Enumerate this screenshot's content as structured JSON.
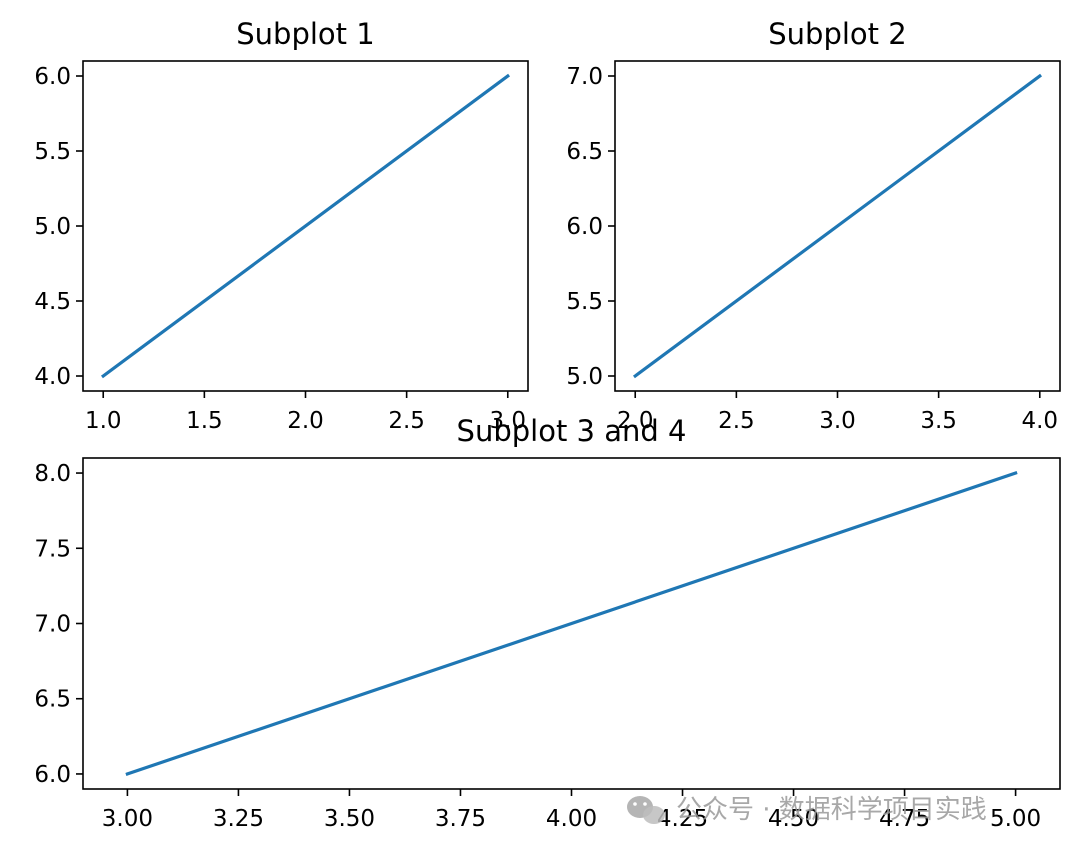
{
  "chart_data": [
    {
      "type": "line",
      "title": "Subplot 1",
      "x": [
        1,
        3
      ],
      "series": [
        {
          "values": [
            4,
            6
          ]
        }
      ],
      "xlim": [
        0.9,
        3.1
      ],
      "ylim": [
        3.9,
        6.1
      ],
      "xticks": [
        1.0,
        1.5,
        2.0,
        2.5,
        3.0
      ],
      "xtick_labels": [
        "1.0",
        "1.5",
        "2.0",
        "2.5",
        "3.0"
      ],
      "yticks": [
        4.0,
        4.5,
        5.0,
        5.5,
        6.0
      ],
      "ytick_labels": [
        "4.0",
        "4.5",
        "5.0",
        "5.5",
        "6.0"
      ],
      "grid": false
    },
    {
      "type": "line",
      "title": "Subplot 2",
      "x": [
        2,
        4
      ],
      "series": [
        {
          "values": [
            5,
            7
          ]
        }
      ],
      "xlim": [
        1.9,
        4.1
      ],
      "ylim": [
        4.9,
        7.1
      ],
      "xticks": [
        2.0,
        2.5,
        3.0,
        3.5,
        4.0
      ],
      "xtick_labels": [
        "2.0",
        "2.5",
        "3.0",
        "3.5",
        "4.0"
      ],
      "yticks": [
        5.0,
        5.5,
        6.0,
        6.5,
        7.0
      ],
      "ytick_labels": [
        "5.0",
        "5.5",
        "6.0",
        "6.5",
        "7.0"
      ],
      "grid": false
    },
    {
      "type": "line",
      "title": "Subplot 3 and 4",
      "x": [
        3,
        5
      ],
      "series": [
        {
          "values": [
            6,
            8
          ]
        }
      ],
      "xlim": [
        2.9,
        5.1
      ],
      "ylim": [
        5.9,
        8.1
      ],
      "xticks": [
        3.0,
        3.25,
        3.5,
        3.75,
        4.0,
        4.25,
        4.5,
        4.75,
        5.0
      ],
      "xtick_labels": [
        "3.00",
        "3.25",
        "3.50",
        "3.75",
        "4.00",
        "4.25",
        "4.50",
        "4.75",
        "5.00"
      ],
      "yticks": [
        6.0,
        6.5,
        7.0,
        7.5,
        8.0
      ],
      "ytick_labels": [
        "6.0",
        "6.5",
        "7.0",
        "7.5",
        "8.0"
      ],
      "grid": false
    }
  ],
  "style": {
    "line_color": "#1f77b4"
  },
  "watermark": {
    "text": "公众号 · 数据科学项目实践",
    "icon": "wechat-icon"
  }
}
